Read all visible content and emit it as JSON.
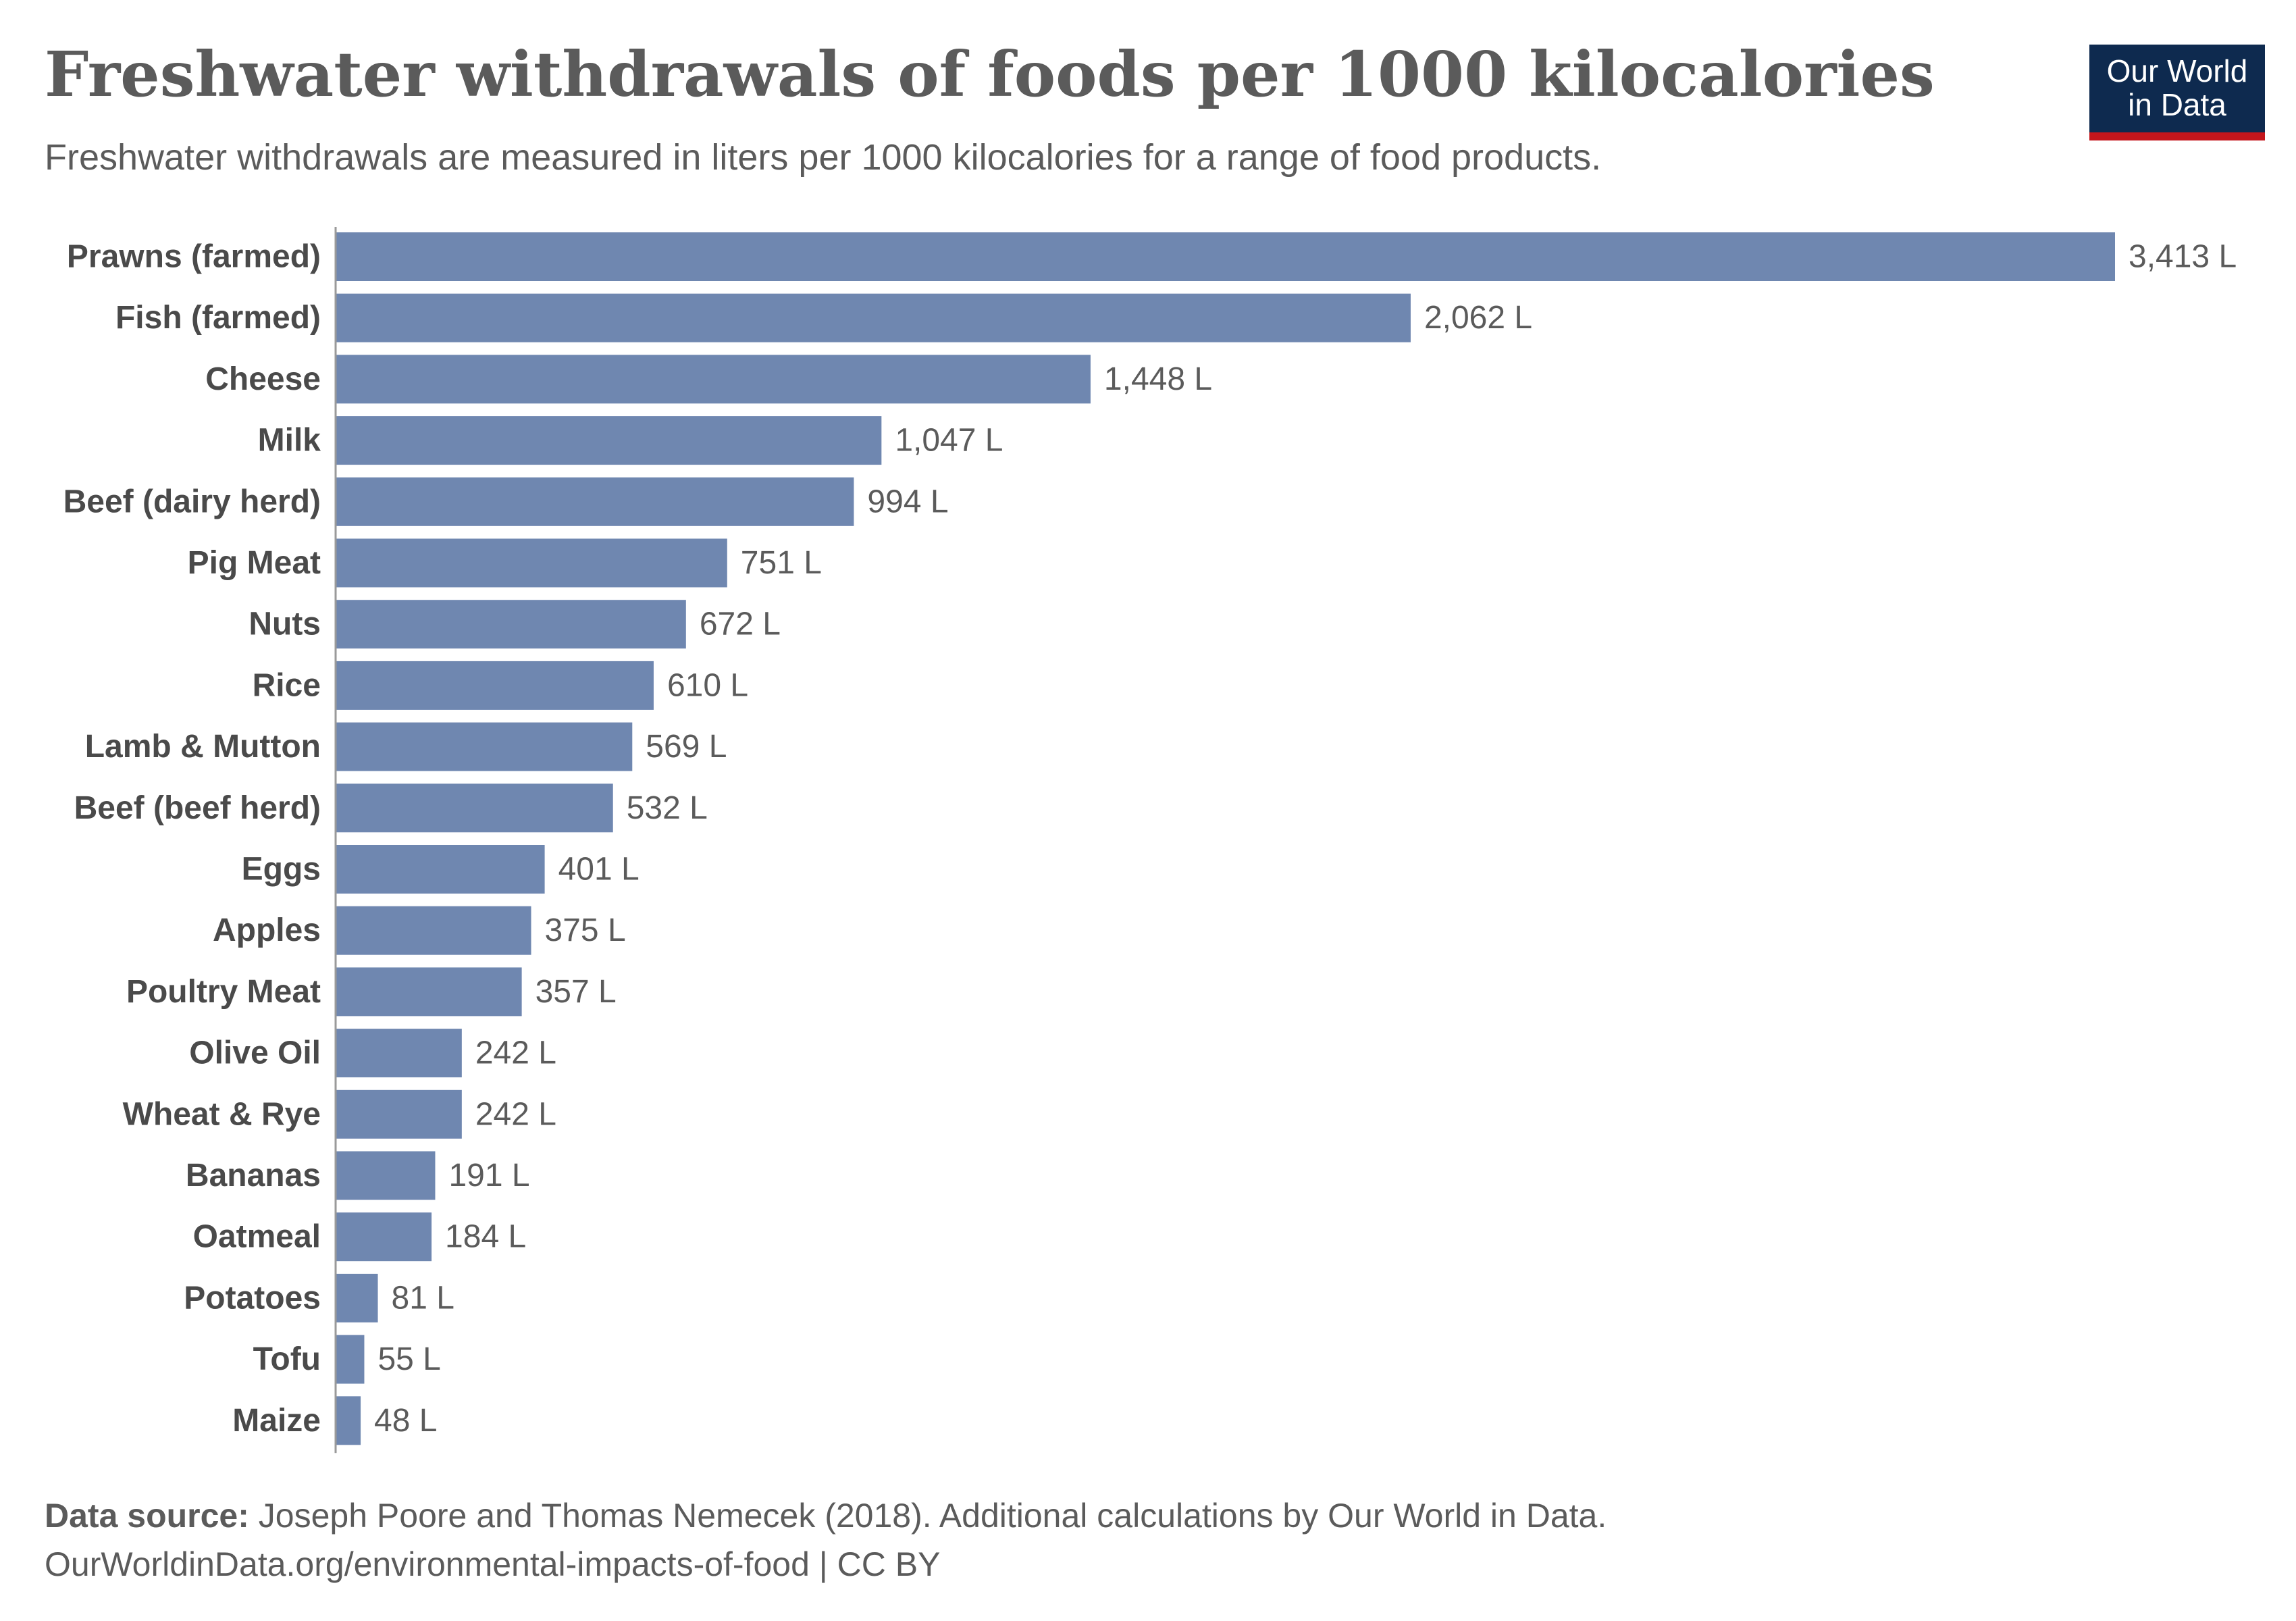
{
  "header": {
    "title": "Freshwater withdrawals of foods per 1000 kilocalories",
    "subtitle": "Freshwater withdrawals are measured in liters per 1000 kilocalories for a range of food products."
  },
  "logo": {
    "line1": "Our World",
    "line2": "in Data",
    "background_color": "#0e2a4f",
    "accent_color": "#c4161c"
  },
  "footer": {
    "source_label": "Data source:",
    "source_text": "Joseph Poore and Thomas Nemecek (2018). Additional calculations by Our World in Data.",
    "url_license": "OurWorldinData.org/environmental-impacts-of-food | CC BY"
  },
  "chart_data": {
    "type": "bar",
    "orientation": "horizontal",
    "title": "Freshwater withdrawals of foods per 1000 kilocalories",
    "subtitle": "Freshwater withdrawals are measured in liters per 1000 kilocalories for a range of food products.",
    "unit_suffix": " L",
    "bar_color": "#6f87b0",
    "grid": false,
    "legend": "none",
    "xlim": [
      0,
      3413
    ],
    "categories": [
      "Prawns (farmed)",
      "Fish (farmed)",
      "Cheese",
      "Milk",
      "Beef (dairy herd)",
      "Pig Meat",
      "Nuts",
      "Rice",
      "Lamb & Mutton",
      "Beef (beef herd)",
      "Eggs",
      "Apples",
      "Poultry Meat",
      "Olive Oil",
      "Wheat & Rye",
      "Bananas",
      "Oatmeal",
      "Potatoes",
      "Tofu",
      "Maize"
    ],
    "values": [
      3413,
      2062,
      1448,
      1047,
      994,
      751,
      672,
      610,
      569,
      532,
      401,
      375,
      357,
      242,
      242,
      191,
      184,
      81,
      55,
      48
    ],
    "value_labels": [
      "3,413 L",
      "2,062 L",
      "1,448 L",
      "1,047 L",
      "994 L",
      "751 L",
      "672 L",
      "610 L",
      "569 L",
      "532 L",
      "401 L",
      "375 L",
      "357 L",
      "242 L",
      "242 L",
      "191 L",
      "184 L",
      "81 L",
      "55 L",
      "48 L"
    ]
  }
}
